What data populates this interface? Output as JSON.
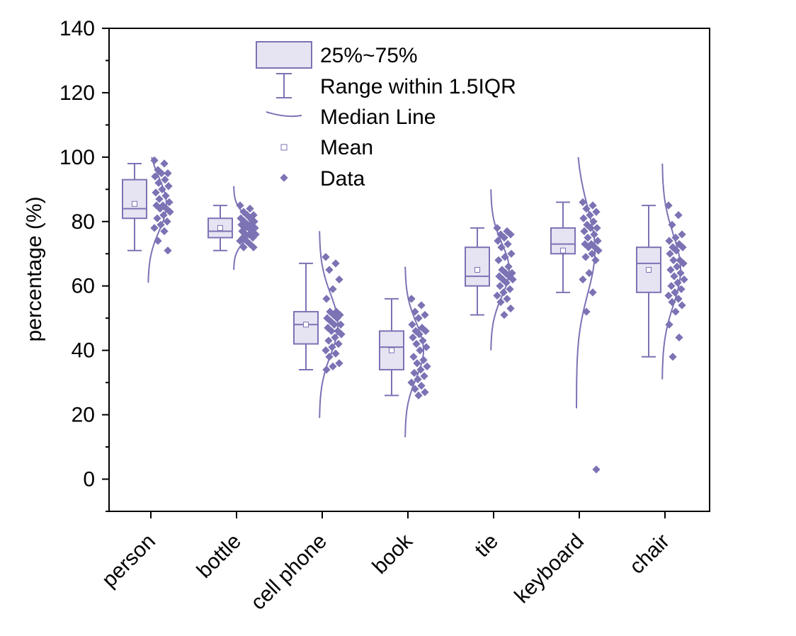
{
  "chart_data": {
    "type": "box",
    "ylabel": "percentage (%)",
    "xlabel": "",
    "ylim": [
      -10,
      140
    ],
    "yticks": [
      0,
      20,
      40,
      60,
      80,
      100,
      120,
      140
    ],
    "grid": false,
    "legend_position": "top-center",
    "legend": {
      "box": "25%~75%",
      "whisker": "Range within 1.5IQR",
      "median": "Median Line",
      "mean": "Mean",
      "data": "Data"
    },
    "color": "#7b73b4",
    "fill_color": "#e6e4f2",
    "categories": [
      "person",
      "bottle",
      "cell phone",
      "book",
      "tie",
      "keyboard",
      "chair"
    ],
    "boxes": [
      {
        "whisker_low": 71,
        "q1": 81,
        "median": 84,
        "q3": 93,
        "whisker_high": 98,
        "mean": 85.5
      },
      {
        "whisker_low": 71,
        "q1": 75,
        "median": 77,
        "q3": 81,
        "whisker_high": 85,
        "mean": 78
      },
      {
        "whisker_low": 34,
        "q1": 42,
        "median": 48,
        "q3": 52,
        "whisker_high": 67,
        "mean": 48
      },
      {
        "whisker_low": 26,
        "q1": 34,
        "median": 41,
        "q3": 46,
        "whisker_high": 56,
        "mean": 40
      },
      {
        "whisker_low": 51,
        "q1": 60,
        "median": 63,
        "q3": 72,
        "whisker_high": 78,
        "mean": 65
      },
      {
        "whisker_low": 58,
        "q1": 70,
        "median": 73,
        "q3": 78,
        "whisker_high": 86,
        "mean": 71
      },
      {
        "whisker_low": 38,
        "q1": 58,
        "median": 67,
        "q3": 72,
        "whisker_high": 85,
        "mean": 65
      }
    ],
    "distribution_curves": [
      {
        "mean": 85.3,
        "sd": 8.2,
        "min": 61,
        "max": 100
      },
      {
        "mean": 78,
        "sd": 4.0,
        "min": 65,
        "max": 91
      },
      {
        "mean": 48,
        "sd": 9.5,
        "min": 19,
        "max": 77
      },
      {
        "mean": 40,
        "sd": 8.6,
        "min": 13,
        "max": 66
      },
      {
        "mean": 65,
        "sd": 8.2,
        "min": 40,
        "max": 90
      },
      {
        "mean": 71,
        "sd": 13.5,
        "min": 22,
        "max": 100
      },
      {
        "mean": 65,
        "sd": 11.0,
        "min": 31,
        "max": 98
      }
    ],
    "data_points": [
      [
        99,
        98,
        96,
        95,
        95,
        94,
        93,
        92,
        91,
        90,
        89,
        88,
        87,
        86,
        85,
        85,
        84,
        84,
        83,
        82,
        81,
        80,
        79,
        78,
        77,
        74,
        71
      ],
      [
        85,
        84,
        83,
        82,
        82,
        81,
        81,
        80,
        80,
        79,
        79,
        79,
        78,
        78,
        78,
        77,
        77,
        76,
        76,
        76,
        75,
        75,
        74,
        74,
        73,
        72,
        72
      ],
      [
        69,
        67,
        65,
        62,
        59,
        56,
        52,
        52,
        51,
        51,
        50,
        50,
        49,
        48,
        48,
        47,
        46,
        46,
        45,
        44,
        43,
        42,
        41,
        40,
        39,
        38,
        36,
        35,
        34
      ],
      [
        56,
        54,
        52,
        51,
        50,
        48,
        47,
        46,
        46,
        45,
        44,
        43,
        42,
        41,
        40,
        38,
        37,
        36,
        35,
        34,
        33,
        32,
        31,
        30,
        29,
        28,
        27,
        26
      ],
      [
        78,
        77,
        76,
        76,
        75,
        74,
        73,
        72,
        70,
        69,
        68,
        66,
        65,
        64,
        64,
        63,
        63,
        62,
        62,
        61,
        60,
        59,
        58,
        57,
        56,
        55,
        53,
        51
      ],
      [
        86,
        85,
        84,
        83,
        82,
        81,
        80,
        79,
        78,
        78,
        77,
        76,
        75,
        74,
        73,
        73,
        72,
        72,
        71,
        70,
        69,
        68,
        64,
        62,
        58,
        52,
        3
      ],
      [
        85,
        82,
        79,
        76,
        75,
        74,
        73,
        72,
        72,
        71,
        70,
        68,
        68,
        67,
        66,
        65,
        64,
        63,
        62,
        61,
        60,
        59,
        58,
        57,
        56,
        55,
        54,
        52,
        48,
        44,
        38
      ]
    ]
  }
}
